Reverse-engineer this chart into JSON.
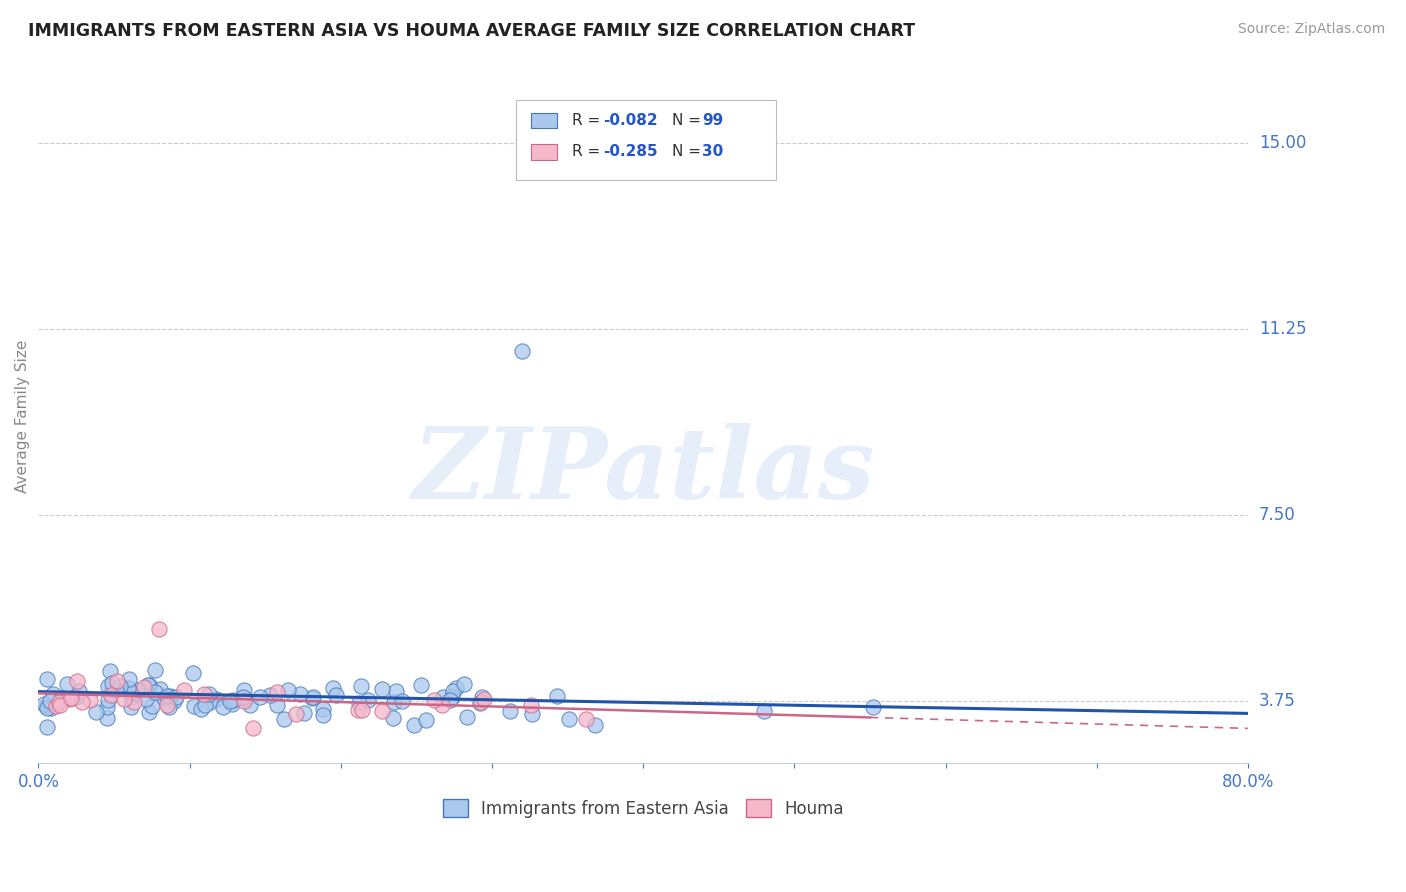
{
  "title": "IMMIGRANTS FROM EASTERN ASIA VS HOUMA AVERAGE FAMILY SIZE CORRELATION CHART",
  "source": "Source: ZipAtlas.com",
  "ylabel": "Average Family Size",
  "xlim": [
    0.0,
    0.8
  ],
  "ylim": [
    2.5,
    16.5
  ],
  "yticks": [
    3.75,
    7.5,
    11.25,
    15.0
  ],
  "xticks": [
    0.0,
    0.1,
    0.2,
    0.3,
    0.4,
    0.5,
    0.6,
    0.7,
    0.8
  ],
  "series1": {
    "label": "Immigrants from Eastern Asia",
    "R": -0.082,
    "N": 99,
    "color": "#aac8ed",
    "edge_color": "#4477bb",
    "trend_color": "#2255aa"
  },
  "series2": {
    "label": "Houma",
    "R": -0.285,
    "N": 30,
    "color": "#f5b8cb",
    "edge_color": "#cc6688",
    "trend_color": "#cc6688"
  },
  "watermark": "ZIPatlas",
  "background_color": "#ffffff",
  "grid_color": "#cccccc",
  "title_color": "#222222",
  "axis_label_color": "#888888",
  "tick_color": "#4477cc",
  "legend_R_N_color": "#2255cc",
  "legend_label_color": "#444444"
}
